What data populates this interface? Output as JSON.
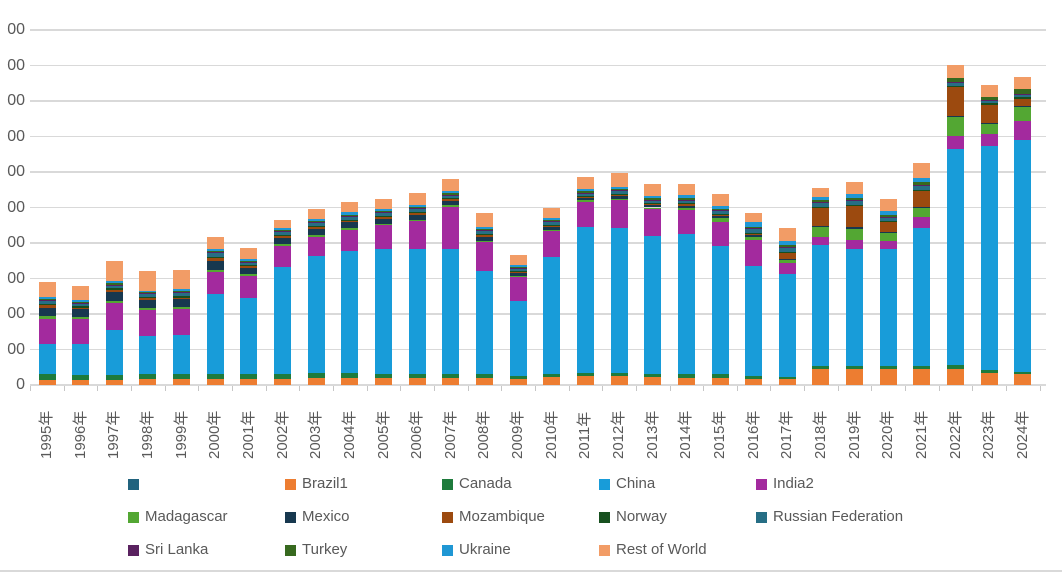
{
  "colors": {
    "axis_text": "#595959",
    "gridline": "#D9D9D9",
    "tick": "#C6C6C6",
    "background": "#FFFFFF",
    "divider": "#D9D9D9"
  },
  "y_axis": {
    "visible_tick_labels": [
      "00",
      "00",
      "00",
      "00",
      "00",
      "00",
      "00",
      "00",
      "00",
      "00",
      "0"
    ],
    "note_labels_clipped_at_left_edge": true
  },
  "chart_data": {
    "type": "bar",
    "stacked": true,
    "title": "",
    "xlabel": "",
    "ylabel": "",
    "ylim": [
      0,
      1000
    ],
    "gridline_step": 100,
    "grid": true,
    "legend_position": "bottom",
    "categories": [
      "1995年",
      "1996年",
      "1997年",
      "1998年",
      "1999年",
      "2000年",
      "2001年",
      "2002年",
      "2003年",
      "2004年",
      "2005年",
      "2006年",
      "2007年",
      "2008年",
      "2009年",
      "2010年",
      "2011年",
      "2012年",
      "2013年",
      "2014年",
      "2015年",
      "2016年",
      "2017年",
      "2018年",
      "2019年",
      "2020年",
      "2021年",
      "2022年",
      "2023年",
      "2024年"
    ],
    "series": [
      {
        "name": "",
        "color": "#21637E",
        "values": [
          0,
          0,
          0,
          0,
          0,
          0,
          0,
          0,
          0,
          0,
          0,
          0,
          0,
          0,
          0,
          0,
          0,
          0,
          0,
          0,
          0,
          0,
          0,
          0,
          0,
          0,
          0,
          0,
          0,
          0
        ]
      },
      {
        "name": "Brazil1",
        "color": "#ED7D31",
        "values": [
          15,
          15,
          15,
          18,
          16,
          16,
          16,
          18,
          20,
          20,
          20,
          20,
          20,
          20,
          16,
          22,
          24,
          24,
          22,
          20,
          20,
          16,
          16,
          44,
          45,
          45,
          45,
          45,
          35,
          30
        ]
      },
      {
        "name": "Canada",
        "color": "#1E7B3C",
        "values": [
          15,
          13,
          14,
          14,
          14,
          14,
          14,
          14,
          13,
          13,
          12,
          12,
          12,
          12,
          10,
          10,
          9,
          9,
          9,
          10,
          12,
          8,
          7,
          9,
          9,
          8,
          8,
          10,
          8,
          8
        ]
      },
      {
        "name": "China",
        "color": "#189CD9",
        "values": [
          85,
          88,
          125,
          105,
          112,
          225,
          215,
          300,
          330,
          345,
          350,
          350,
          350,
          290,
          212,
          330,
          413,
          410,
          390,
          395,
          360,
          310,
          290,
          340,
          330,
          330,
          390,
          609,
          630,
          652
        ]
      },
      {
        "name": "India2",
        "color": "#A32A9E",
        "values": [
          72,
          70,
          78,
          75,
          72,
          62,
          62,
          60,
          55,
          60,
          68,
          80,
          120,
          80,
          66,
          72,
          70,
          78,
          75,
          68,
          68,
          75,
          30,
          23,
          25,
          22,
          30,
          38,
          35,
          53
        ]
      },
      {
        "name": "Madagascar",
        "color": "#53A733",
        "values": [
          6,
          5,
          6,
          5,
          5,
          7,
          5,
          5,
          5,
          5,
          4,
          4,
          4,
          4,
          3,
          4,
          4,
          4,
          4,
          6,
          10,
          8,
          8,
          28,
          30,
          22,
          25,
          54,
          28,
          40
        ]
      },
      {
        "name": "Mexico",
        "color": "#17384F",
        "values": [
          25,
          22,
          24,
          22,
          22,
          25,
          18,
          18,
          17,
          15,
          14,
          14,
          12,
          12,
          8,
          8,
          7,
          7,
          6,
          6,
          5,
          5,
          5,
          5,
          5,
          4,
          4,
          3,
          3,
          3
        ]
      },
      {
        "name": "Mozambique",
        "color": "#9C4A0F",
        "values": [
          6,
          5,
          6,
          5,
          5,
          8,
          5,
          5,
          5,
          5,
          5,
          5,
          5,
          5,
          4,
          4,
          4,
          4,
          4,
          4,
          4,
          4,
          15,
          50,
          60,
          28,
          45,
          80,
          50,
          20
        ]
      },
      {
        "name": "Norway",
        "color": "#17501F",
        "values": [
          4,
          4,
          4,
          4,
          4,
          4,
          3,
          3,
          3,
          3,
          3,
          3,
          3,
          3,
          2,
          2,
          2,
          3,
          3,
          3,
          3,
          3,
          3,
          3,
          3,
          3,
          3,
          4,
          4,
          4
        ]
      },
      {
        "name": "Russian Federation",
        "color": "#266E85",
        "values": [
          8,
          7,
          8,
          7,
          8,
          10,
          7,
          8,
          8,
          8,
          8,
          8,
          8,
          8,
          6,
          7,
          7,
          7,
          7,
          8,
          8,
          10,
          12,
          12,
          12,
          10,
          12,
          7,
          8,
          8
        ]
      },
      {
        "name": "Sri Lanka",
        "color": "#5A2260",
        "values": [
          3,
          3,
          3,
          3,
          3,
          3,
          2,
          2,
          2,
          2,
          2,
          2,
          2,
          2,
          2,
          2,
          2,
          2,
          2,
          2,
          2,
          2,
          2,
          2,
          2,
          2,
          2,
          3,
          3,
          3
        ]
      },
      {
        "name": "Turkey",
        "color": "#37691F",
        "values": [
          3,
          3,
          4,
          3,
          3,
          3,
          3,
          4,
          4,
          4,
          4,
          4,
          4,
          4,
          3,
          4,
          4,
          5,
          5,
          5,
          5,
          5,
          5,
          5,
          6,
          6,
          8,
          13,
          8,
          12
        ]
      },
      {
        "name": "Ukraine",
        "color": "#1F97D4",
        "values": [
          5,
          5,
          6,
          5,
          6,
          5,
          5,
          5,
          6,
          6,
          6,
          6,
          6,
          6,
          5,
          6,
          6,
          6,
          6,
          8,
          8,
          12,
          12,
          9,
          10,
          9,
          10,
          0,
          0,
          0
        ]
      },
      {
        "name": "Rest of World",
        "color": "#F29C66",
        "values": [
          43,
          40,
          57,
          54,
          55,
          36,
          30,
          23,
          27,
          29,
          29,
          32,
          34,
          39,
          30,
          29,
          35,
          39,
          32,
          32,
          32,
          26,
          37,
          26,
          36,
          35,
          42,
          36,
          33,
          35
        ]
      }
    ]
  }
}
